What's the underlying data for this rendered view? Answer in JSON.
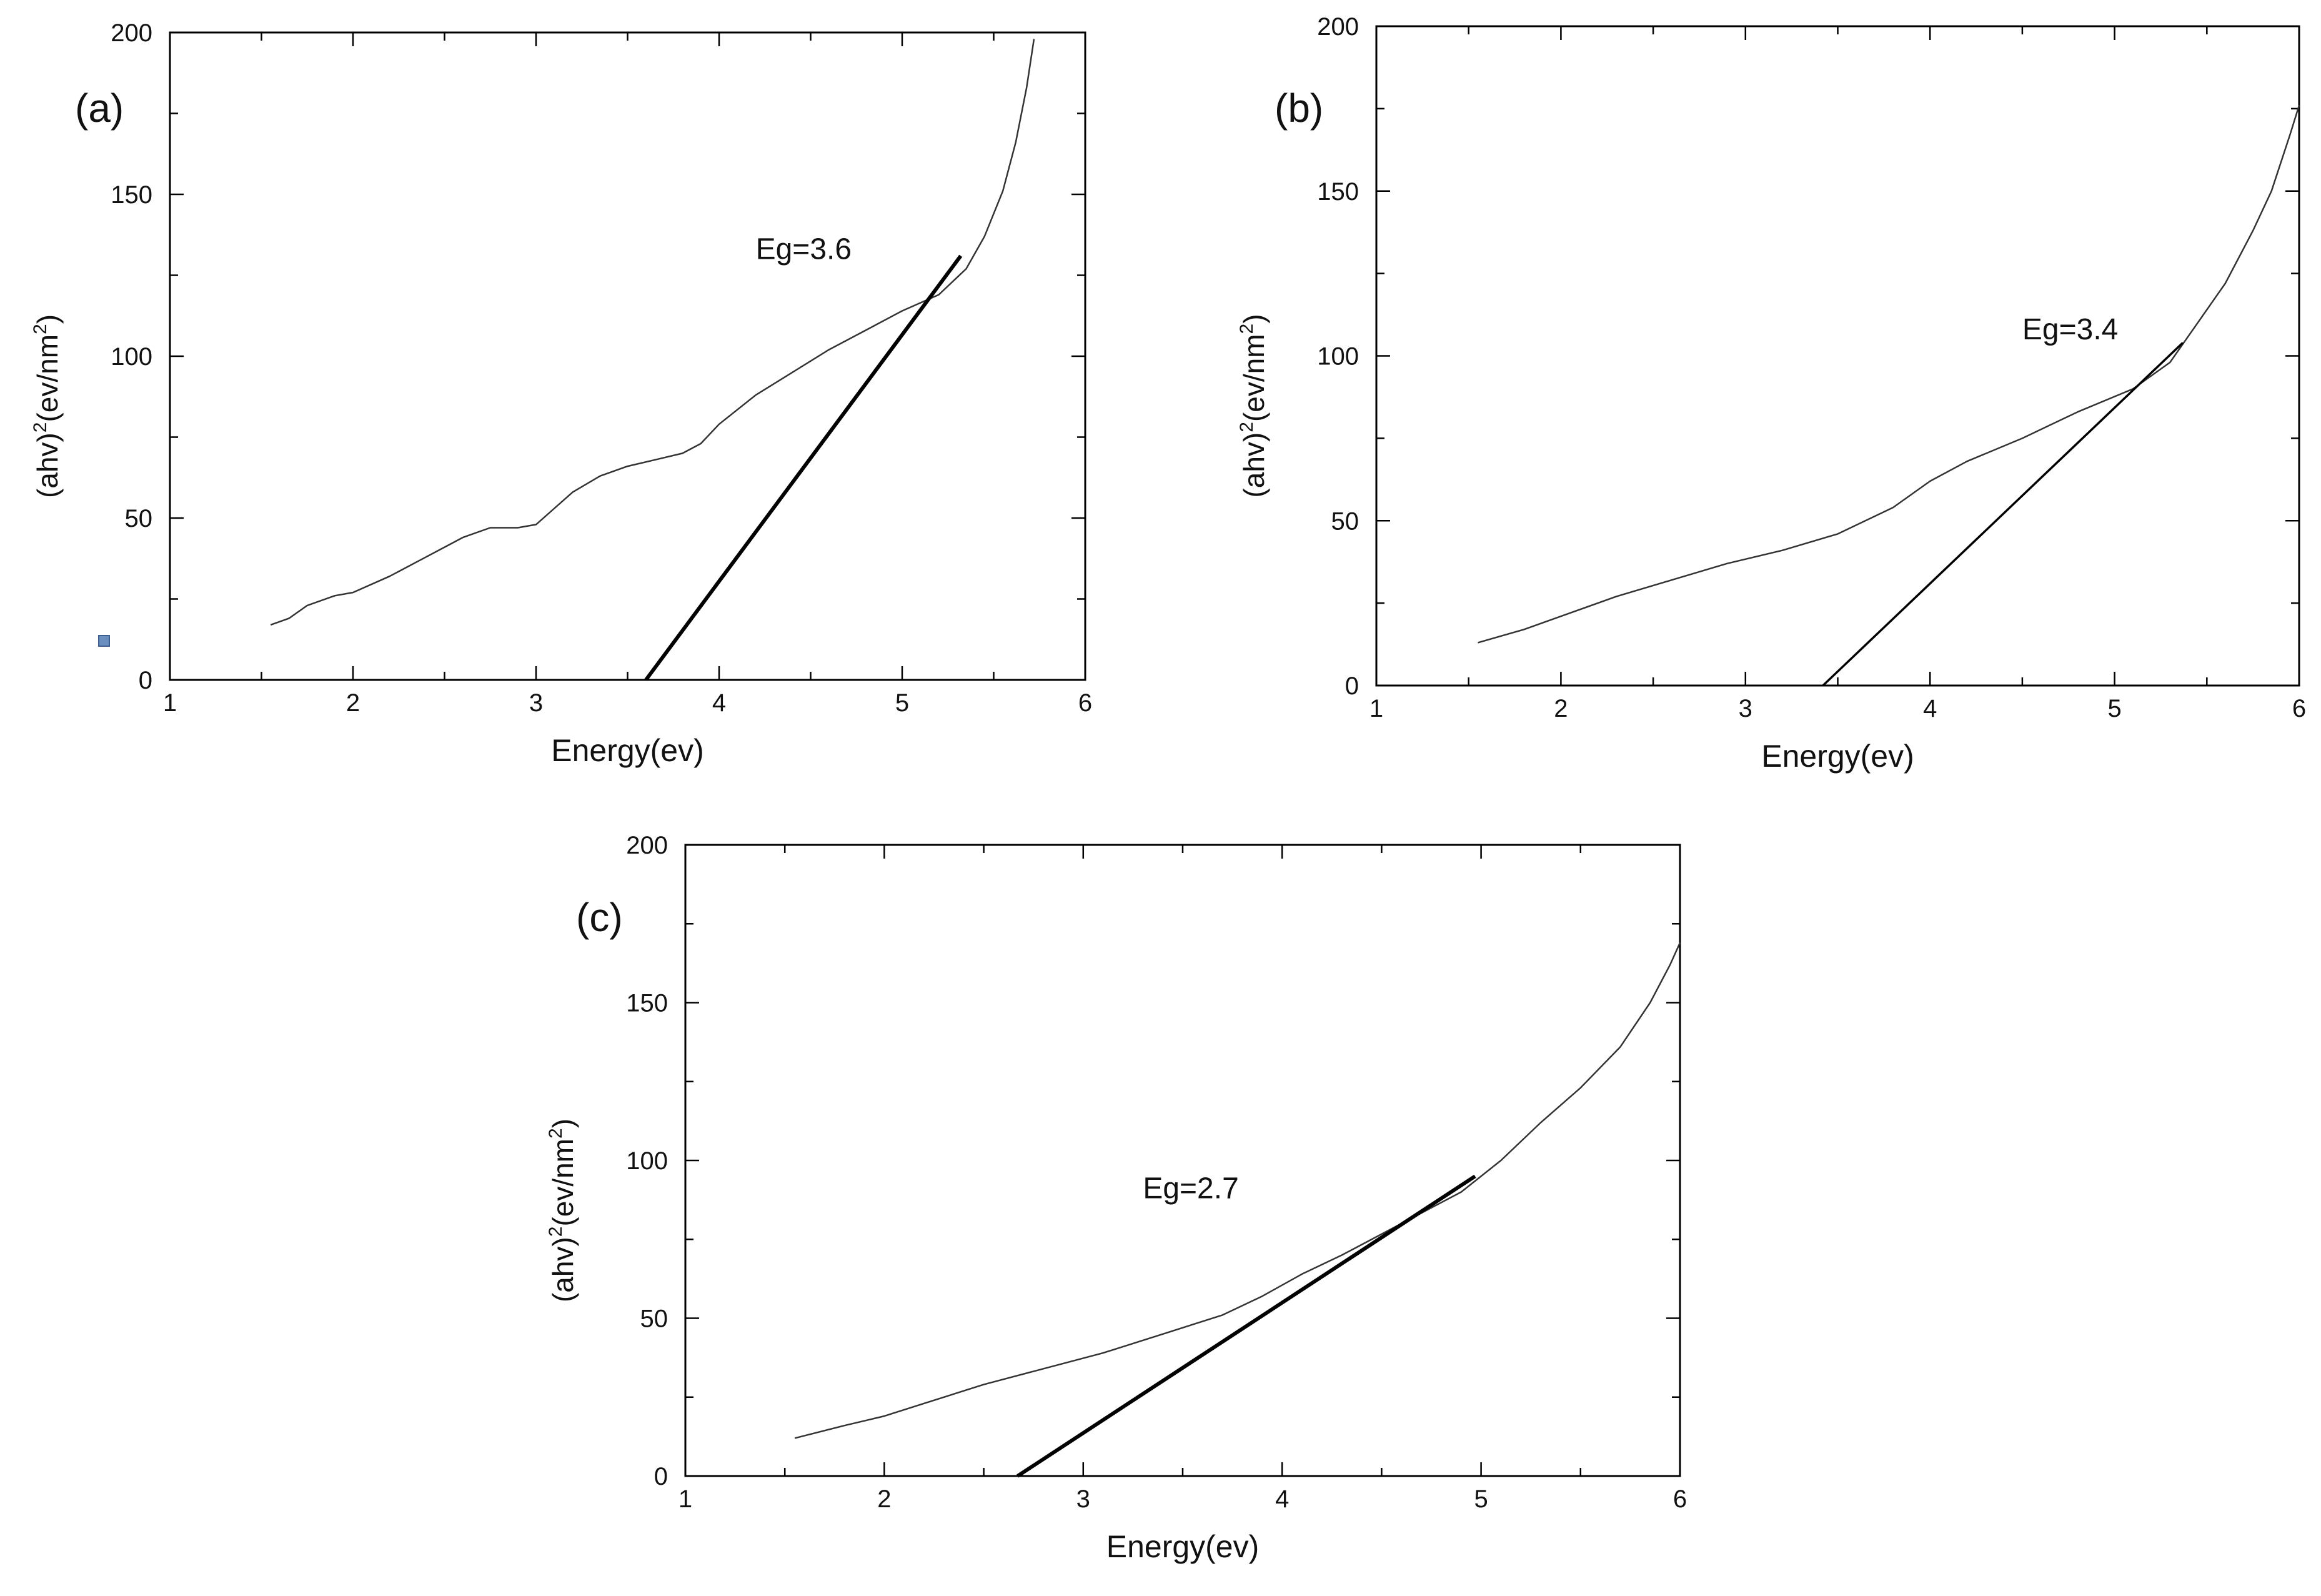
{
  "chart_data": [
    {
      "panel_label": "(a)",
      "type": "line",
      "xlabel": "Energy(ev)",
      "ylabel": {
        "p1": "(ahv)",
        "sup1": "2",
        "p2": "(ev/nm",
        "sup2": "2",
        "p3": ")"
      },
      "xlim": [
        1,
        6
      ],
      "ylim": [
        0,
        200
      ],
      "xticks": [
        "1",
        "2",
        "3",
        "4",
        "5",
        "6"
      ],
      "yticks": [
        "0",
        "50",
        "100",
        "150",
        "200"
      ],
      "annotation": {
        "text": "Eg=3.6",
        "x": 4.2,
        "y": 130
      },
      "series": [
        {
          "x": [
            1.55,
            1.65,
            1.75,
            1.9,
            2.0,
            2.2,
            2.4,
            2.6,
            2.75,
            2.9,
            3.0,
            3.1,
            3.2,
            3.35,
            3.5,
            3.65,
            3.8,
            3.9,
            4.0,
            4.2,
            4.4,
            4.6,
            4.8,
            5.0,
            5.2,
            5.35,
            5.45,
            5.55,
            5.62,
            5.68,
            5.72
          ],
          "y": [
            17,
            19,
            23,
            26,
            27,
            32,
            38,
            44,
            47,
            47,
            48,
            53,
            58,
            63,
            66,
            68,
            70,
            73,
            79,
            88,
            95,
            102,
            108,
            114,
            119,
            127,
            137,
            151,
            166,
            183,
            198
          ]
        }
      ],
      "fit_line": {
        "x": [
          3.6,
          5.32
        ],
        "y": [
          0,
          131
        ]
      }
    },
    {
      "panel_label": "(b)",
      "type": "line",
      "xlabel": "Energy(ev)",
      "ylabel": {
        "p1": "(ahv)",
        "sup1": "2",
        "p2": "(ev/nm",
        "sup2": "2",
        "p3": ")"
      },
      "xlim": [
        1,
        6
      ],
      "ylim": [
        0,
        200
      ],
      "xticks": [
        "1",
        "2",
        "3",
        "4",
        "5",
        "6"
      ],
      "yticks": [
        "0",
        "50",
        "100",
        "150",
        "200"
      ],
      "annotation": {
        "text": "Eg=3.4",
        "x": 4.5,
        "y": 105
      },
      "series": [
        {
          "x": [
            1.55,
            1.8,
            2.0,
            2.3,
            2.6,
            2.9,
            3.2,
            3.5,
            3.8,
            4.0,
            4.2,
            4.5,
            4.8,
            5.1,
            5.3,
            5.45,
            5.6,
            5.75,
            5.85,
            5.95,
            6.0
          ],
          "y": [
            13,
            17,
            21,
            27,
            32,
            37,
            41,
            46,
            54,
            62,
            68,
            75,
            83,
            90,
            98,
            110,
            122,
            138,
            150,
            167,
            176
          ]
        }
      ],
      "fit_line": {
        "x": [
          3.42,
          5.37
        ],
        "y": [
          0,
          104
        ]
      }
    },
    {
      "panel_label": "(c)",
      "type": "line",
      "xlabel": "Energy(ev)",
      "ylabel": {
        "p1": "(ahv)",
        "sup1": "2",
        "p2": "(ev/nm",
        "sup2": "2",
        "p3": ")"
      },
      "xlim": [
        1,
        6
      ],
      "ylim": [
        0,
        200
      ],
      "xticks": [
        "1",
        "2",
        "3",
        "4",
        "5",
        "6"
      ],
      "yticks": [
        "0",
        "50",
        "100",
        "150",
        "200"
      ],
      "annotation": {
        "text": "Eg=2.7",
        "x": 3.3,
        "y": 88
      },
      "series": [
        {
          "x": [
            1.55,
            1.8,
            2.0,
            2.2,
            2.5,
            2.8,
            3.1,
            3.4,
            3.7,
            3.9,
            4.1,
            4.3,
            4.6,
            4.9,
            5.1,
            5.3,
            5.5,
            5.7,
            5.85,
            5.95,
            6.0
          ],
          "y": [
            12,
            16,
            19,
            23,
            29,
            34,
            39,
            45,
            51,
            57,
            64,
            70,
            80,
            90,
            100,
            112,
            123,
            136,
            150,
            162,
            169
          ]
        }
      ],
      "fit_line": {
        "x": [
          2.67,
          4.97
        ],
        "y": [
          0,
          95
        ]
      }
    }
  ]
}
